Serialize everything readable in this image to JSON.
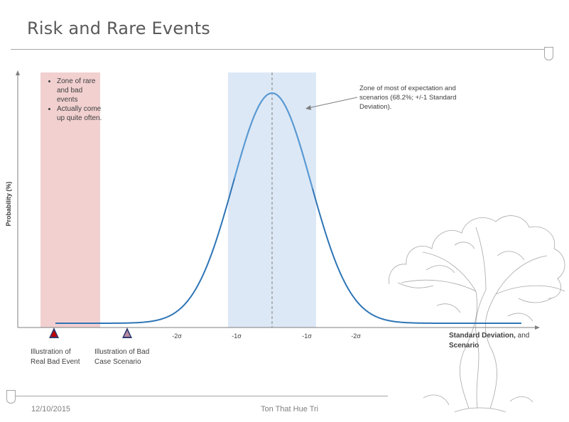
{
  "page": {
    "title": "Risk and Rare Events",
    "date": "12/10/2015",
    "author": "Ton That Hue Tri"
  },
  "chart": {
    "y_axis_label": "Probability (%)",
    "x_axis_label_bold": "Standard Deviation,",
    "x_axis_label_rest": " and",
    "x_axis_label_line2": "Scenario",
    "tick_labels": [
      "-2σ",
      "-1σ",
      "-1σ",
      "-2σ"
    ],
    "rare_zone_bullets": [
      "Zone of rare and bad events",
      "Actually come up quite often."
    ],
    "center_zone_note": "Zone of most of expectation and scenarios (68.2%; +/-1 Standard Deviation).",
    "marker_real_label": [
      "Illustration of",
      "Real Bad Event"
    ],
    "marker_case_label": [
      "Illustration of Bad",
      "Case Scenario"
    ]
  },
  "colors": {
    "rare_zone": "#f2d0d0",
    "center_zone": "#dde8f6",
    "curve": "#2e75b6",
    "curve_top": "#5b9bd5",
    "marker_real": "#c00000",
    "marker_case": "#8e6fa6"
  },
  "chart_data": {
    "type": "line",
    "x_tick_labels": [
      "-2σ",
      "-1σ",
      "-1σ",
      "-2σ"
    ],
    "xlabel": "Standard Deviation, and Scenario",
    "ylabel": "Probability (%)",
    "shape": "bell curve"
  },
  "decorations": {
    "tree_icon": "tree-illustration"
  }
}
